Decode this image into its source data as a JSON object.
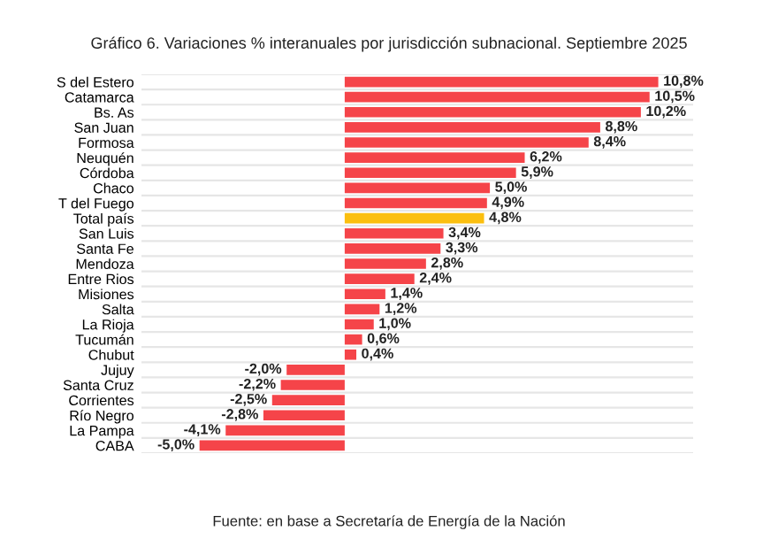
{
  "chart_data": {
    "type": "bar",
    "orientation": "horizontal",
    "title": "Gráfico 6. Variaciones % interanuales por jurisdicción subnacional. Septiembre 2025",
    "categories": [
      "S del Estero",
      "Catamarca",
      "Bs. As",
      "San Juan",
      "Formosa",
      "Neuquén",
      "Córdoba",
      "Chaco",
      "T del Fuego",
      "Total país",
      "San Luis",
      "Santa Fe",
      "Mendoza",
      "Entre Rios",
      "Misiones",
      "Salta",
      "La Rioja",
      "Tucumán",
      "Chubut",
      "Jujuy",
      "Santa Cruz",
      "Corrientes",
      "Río Negro",
      "La Pampa",
      "CABA"
    ],
    "values": [
      10.8,
      10.5,
      10.2,
      8.8,
      8.4,
      6.2,
      5.9,
      5.0,
      4.9,
      4.8,
      3.4,
      3.3,
      2.8,
      2.4,
      1.4,
      1.2,
      1.0,
      0.6,
      0.4,
      -2.0,
      -2.2,
      -2.5,
      -2.8,
      -4.1,
      -5.0
    ],
    "value_labels": [
      "10,8%",
      "10,5%",
      "10,2%",
      "8,8%",
      "8,4%",
      "6,2%",
      "5,9%",
      "5,0%",
      "4,9%",
      "4,8%",
      "3,4%",
      "3,3%",
      "2,8%",
      "2,4%",
      "1,4%",
      "1,2%",
      "1,0%",
      "0,6%",
      "0,4%",
      "-2,0%",
      "-2,2%",
      "-2,5%",
      "-2,8%",
      "-4,1%",
      "-5,0%"
    ],
    "colors": [
      "#f54449",
      "#f54449",
      "#f54449",
      "#f54449",
      "#f54449",
      "#f54449",
      "#f54449",
      "#f54449",
      "#f54449",
      "#fbbf0f",
      "#f54449",
      "#f54449",
      "#f54449",
      "#f54449",
      "#f54449",
      "#f54449",
      "#f54449",
      "#f54449",
      "#f54449",
      "#f54449",
      "#f54449",
      "#f54449",
      "#f54449",
      "#f54449",
      "#f54449"
    ],
    "xlim": [
      -7.0,
      12.0
    ],
    "tick_labels": "y",
    "grid": "y",
    "annotations": [
      "Fuente: en base a Secretaría de Energía de la Nación"
    ]
  }
}
